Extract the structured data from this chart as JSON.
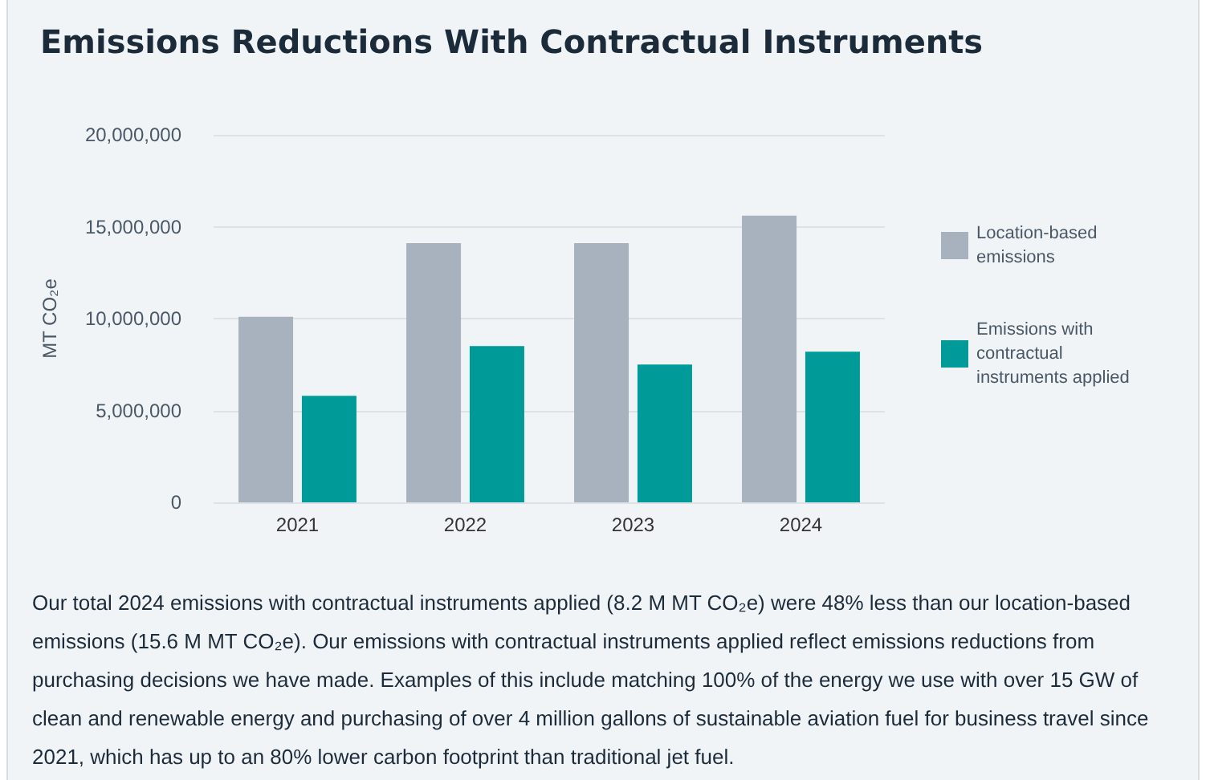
{
  "chart_data": {
    "type": "bar",
    "title": "Emissions Reductions With Contractual Instruments",
    "ylabel": "MT CO₂e",
    "categories": [
      "2021",
      "2022",
      "2023",
      "2024"
    ],
    "series": [
      {
        "name": "Location-based emissions",
        "color": "#a7b2be",
        "values": [
          10100000,
          14100000,
          14100000,
          15600000
        ]
      },
      {
        "name": "Emissions with contractual instruments applied",
        "color": "#009b98",
        "values": [
          5800000,
          8500000,
          7500000,
          8200000
        ]
      }
    ],
    "ylim": [
      0,
      20000000
    ],
    "yticks": [
      0,
      {
        "value": 5000000,
        "label": "5,000,000"
      },
      {
        "value": 10000000,
        "label": "10,000,000"
      },
      {
        "value": 15000000,
        "label": "15,000,000"
      },
      {
        "value": 20000000,
        "label": "20,000,000"
      }
    ],
    "grid": "y",
    "legend": "right",
    "annotations": [
      "Our total 2024 emissions with contractual instruments applied (8.2 M MT CO₂e) were 48% less than our location-based emissions (15.6 M MT CO₂e). Our emissions with contractual instruments applied reflect emissions reductions from purchasing decisions we have made. Examples of this include matching 100% of the energy we use with over 15 GW of clean and renewable energy and purchasing of over 4 million gallons of sustainable aviation fuel for business travel since 2021, which has up to an 80% lower carbon footprint than traditional jet fuel."
    ]
  }
}
